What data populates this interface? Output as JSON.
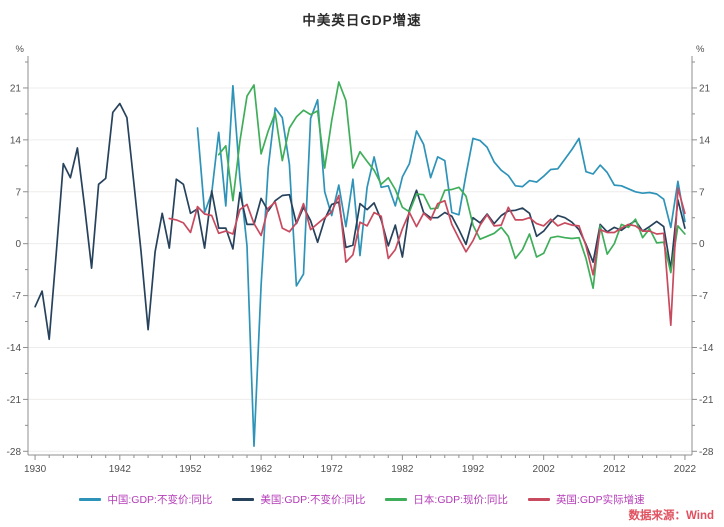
{
  "title": "中美英日GDP增速",
  "source": "数据来源：Wind",
  "colors": {
    "legend_text": "#b43cb8",
    "source_text": "#e0515f",
    "axis_line": "#8f8f8f",
    "tick_label": "#4f4f4f",
    "gridline": "#efecec",
    "background": "#ffffff",
    "title_text": "#2b2b2b"
  },
  "axes": {
    "y_unit_left": "%",
    "y_unit_right": "%",
    "y_ticks": [
      21,
      14,
      7,
      0,
      -7,
      -14,
      -21,
      -28
    ],
    "y_minor_ticks": [
      24.5,
      17.5,
      10.5,
      3.5,
      -3.5,
      -10.5,
      -17.5,
      -24.5
    ],
    "y_range": [
      -28.5,
      24.5
    ],
    "x_ticks": [
      1930,
      1942,
      1952,
      1962,
      1972,
      1982,
      1992,
      2002,
      2012,
      2022
    ],
    "x_minor_every": 2,
    "x_range": [
      1929,
      2023
    ],
    "grid": "horizontal-major"
  },
  "chart_data": {
    "type": "line",
    "title": "中美英日GDP增速",
    "xlabel": "year",
    "ylabel": "%",
    "ylim": [
      -28.5,
      24.5
    ],
    "xlim": [
      1929,
      2023
    ],
    "legend_position": "bottom",
    "series": [
      {
        "name": "中国:GDP:不变价:同比",
        "color": "#2e93b8",
        "start_year": 1953,
        "values": [
          15.6,
          4.2,
          6.8,
          15.0,
          5.1,
          21.3,
          8.8,
          -0.3,
          -27.3,
          -5.6,
          10.2,
          18.3,
          17.0,
          10.7,
          -5.7,
          -4.1,
          16.9,
          19.4,
          7.0,
          3.8,
          7.9,
          2.3,
          8.7,
          -1.6,
          7.6,
          11.7,
          7.6,
          7.8,
          5.1,
          9.0,
          10.8,
          15.2,
          13.4,
          8.9,
          11.7,
          11.2,
          4.2,
          3.9,
          9.3,
          14.2,
          13.9,
          13.0,
          11.0,
          9.9,
          9.2,
          7.8,
          7.7,
          8.5,
          8.3,
          9.1,
          10.0,
          10.1,
          11.4,
          12.7,
          14.2,
          9.7,
          9.4,
          10.6,
          9.6,
          7.9,
          7.8,
          7.4,
          7.0,
          6.8,
          6.9,
          6.7,
          6.0,
          2.2,
          8.4,
          3.0
        ]
      },
      {
        "name": "美国:GDP:不变价:同比",
        "color": "#27425c",
        "start_year": 1930,
        "values": [
          -8.5,
          -6.4,
          -12.9,
          -1.2,
          10.8,
          8.9,
          12.9,
          5.1,
          -3.3,
          8.0,
          8.8,
          17.7,
          18.9,
          17.0,
          8.0,
          -1.0,
          -11.6,
          -1.1,
          4.1,
          -0.6,
          8.7,
          8.0,
          4.1,
          4.7,
          -0.6,
          7.1,
          2.1,
          2.1,
          -0.7,
          6.9,
          2.6,
          2.6,
          6.1,
          4.4,
          5.8,
          6.5,
          6.6,
          2.7,
          4.9,
          3.1,
          0.2,
          3.3,
          5.3,
          5.6,
          -0.5,
          -0.2,
          5.4,
          4.6,
          5.5,
          3.2,
          -0.3,
          2.5,
          -1.8,
          4.6,
          7.2,
          4.2,
          3.5,
          3.5,
          4.2,
          3.7,
          1.9,
          -0.1,
          3.5,
          2.8,
          4.0,
          2.7,
          3.8,
          4.4,
          4.5,
          4.8,
          4.1,
          1.0,
          1.7,
          2.9,
          3.8,
          3.5,
          2.9,
          1.9,
          -0.1,
          -2.5,
          2.6,
          1.6,
          2.2,
          1.8,
          2.5,
          3.1,
          1.7,
          2.3,
          3.0,
          2.3,
          -3.4,
          5.9,
          2.1
        ]
      },
      {
        "name": "日本:GDP:现价:同比",
        "color": "#3fae5a",
        "start_year": 1956,
        "values": [
          12.0,
          13.2,
          5.8,
          13.8,
          19.9,
          21.4,
          12.1,
          15.2,
          17.6,
          11.2,
          15.6,
          17.1,
          18.0,
          17.4,
          17.9,
          10.2,
          16.6,
          21.8,
          19.3,
          10.2,
          12.4,
          11.1,
          9.9,
          8.0,
          8.9,
          7.3,
          4.9,
          4.3,
          6.7,
          6.6,
          4.7,
          4.8,
          7.2,
          7.3,
          7.6,
          6.4,
          2.5,
          0.6,
          1.0,
          1.4,
          2.2,
          1.0,
          -2.0,
          -0.8,
          1.3,
          -1.8,
          -1.3,
          0.8,
          1.0,
          0.8,
          0.7,
          0.8,
          -2.0,
          -6.0,
          2.4,
          -1.4,
          0.0,
          2.6,
          2.2,
          3.3,
          0.8,
          2.0,
          0.1,
          0.2,
          -3.9,
          2.4,
          1.3
        ]
      },
      {
        "name": "英国:GDP实际增速",
        "color": "#c84a5e",
        "start_year": 1949,
        "values": [
          3.4,
          3.2,
          2.8,
          1.5,
          5.0,
          4.0,
          3.8,
          1.4,
          1.7,
          1.3,
          4.6,
          5.3,
          2.7,
          1.1,
          4.8,
          5.6,
          2.1,
          1.6,
          2.8,
          5.4,
          1.9,
          2.7,
          3.5,
          4.3,
          6.5,
          -2.5,
          -1.5,
          2.9,
          2.4,
          4.2,
          3.7,
          -2.0,
          -0.8,
          2.0,
          4.2,
          2.3,
          4.1,
          3.2,
          5.4,
          5.8,
          2.6,
          0.7,
          -1.1,
          0.4,
          2.5,
          3.9,
          2.4,
          2.5,
          4.9,
          3.2,
          3.2,
          3.5,
          2.7,
          2.4,
          3.3,
          2.4,
          2.8,
          2.5,
          2.4,
          -0.3,
          -4.2,
          1.9,
          1.5,
          1.5,
          2.1,
          2.6,
          2.4,
          1.7,
          1.7,
          1.3,
          1.4,
          -11.0,
          7.5,
          4.1
        ]
      }
    ]
  }
}
